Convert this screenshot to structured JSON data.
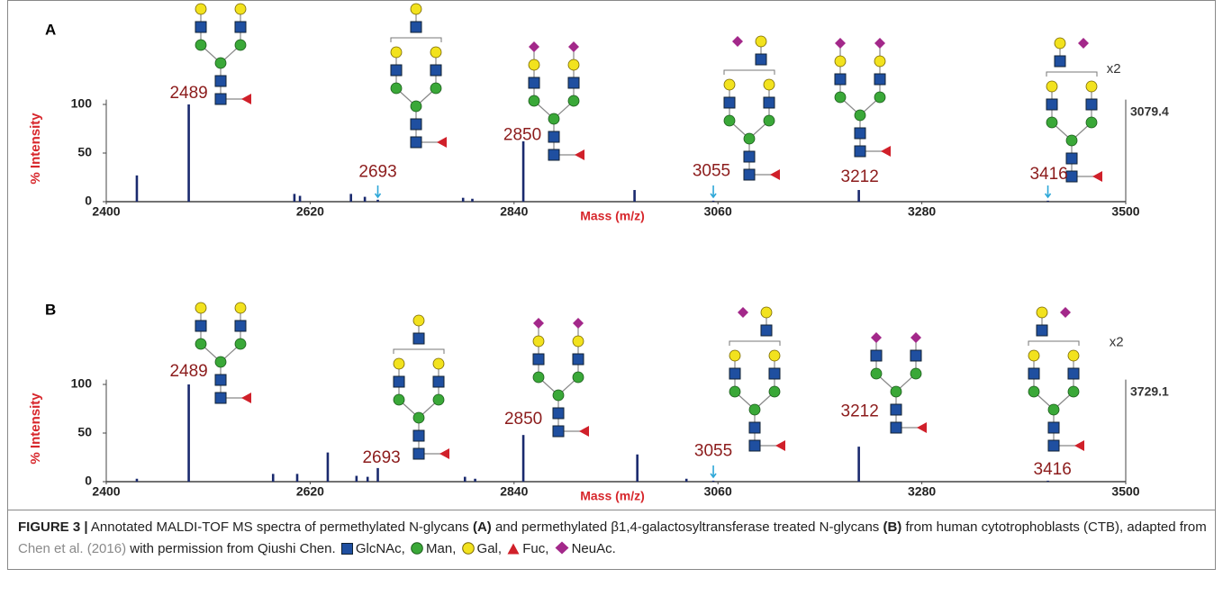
{
  "chart_data": [
    {
      "type": "stem",
      "panel_label": "A",
      "ylabel": "% Intensity",
      "xlabel": "Mass (m/z)",
      "max_intensity": "3079.4",
      "xlim": [
        2400,
        3500
      ],
      "xticks": [
        2400,
        2620,
        2840,
        3060,
        3280,
        3500
      ],
      "ylim": [
        0,
        105
      ],
      "yticks": [
        0,
        50,
        100
      ],
      "color": "#1a2a6e",
      "x": [
        2433,
        2489,
        2603,
        2609,
        2664,
        2679,
        2693,
        2785,
        2795,
        2850,
        2970,
        3055,
        3212,
        3416
      ],
      "values": [
        27,
        100,
        8,
        6,
        8,
        5,
        2,
        4,
        3,
        62,
        12,
        1,
        12,
        1
      ],
      "annotations": [
        {
          "text": "2489",
          "x": 2489,
          "y": 111
        },
        {
          "text": "2693",
          "x": 2693,
          "y": 30
        },
        {
          "text": "2850",
          "x": 2849,
          "y": 68
        },
        {
          "text": "3055",
          "x": 3053,
          "y": 31
        },
        {
          "text": "3212",
          "x": 3213,
          "y": 25
        },
        {
          "text": "3416",
          "x": 3417,
          "y": 28
        }
      ],
      "note": {
        "text": "x2",
        "x": 3487,
        "y": 136
      },
      "arrows": [
        2693,
        3055,
        3416
      ]
    },
    {
      "type": "stem",
      "panel_label": "B",
      "ylabel": "% Intensity",
      "xlabel": "Mass (m/z)",
      "max_intensity": "3729.1",
      "xlim": [
        2400,
        3500
      ],
      "xticks": [
        2400,
        2620,
        2840,
        3060,
        3280,
        3500
      ],
      "ylim": [
        0,
        105
      ],
      "yticks": [
        0,
        50,
        100
      ],
      "color": "#1a2a6e",
      "x": [
        2433,
        2489,
        2580,
        2606,
        2639,
        2670,
        2682,
        2693,
        2787,
        2798,
        2850,
        2973,
        3026,
        3055,
        3212,
        3416
      ],
      "values": [
        3,
        100,
        8,
        8,
        30,
        6,
        5,
        14,
        5,
        3,
        48,
        28,
        3,
        1,
        36,
        1
      ],
      "annotations": [
        {
          "text": "2489",
          "x": 2489,
          "y": 113
        },
        {
          "text": "2693",
          "x": 2697,
          "y": 24
        },
        {
          "text": "2850",
          "x": 2850,
          "y": 64
        },
        {
          "text": "3055",
          "x": 3055,
          "y": 31
        },
        {
          "text": "3212",
          "x": 3213,
          "y": 72
        },
        {
          "text": "3416",
          "x": 3421,
          "y": 12
        }
      ],
      "note": {
        "text": "x2",
        "x": 3490,
        "y": 143
      },
      "arrows": [
        3055
      ]
    }
  ],
  "caption": {
    "label": "FIGURE 3 |",
    "text": [
      " Annotated MALDI-TOF MS spectra of permethylated N-glycans ",
      " and permethylated β1,4-galactosyltransferase treated N-glycans ",
      " from human cytotrophoblasts (CTB), adapted from ",
      " with permission from Qiushi Chen. "
    ],
    "bold": [
      "(A)",
      "(B)"
    ],
    "reference": "Chen et al. (2016)",
    "legend": [
      "GlcNAc,",
      "Man,",
      "Gal,",
      "Fuc,",
      "NeuAc."
    ]
  }
}
